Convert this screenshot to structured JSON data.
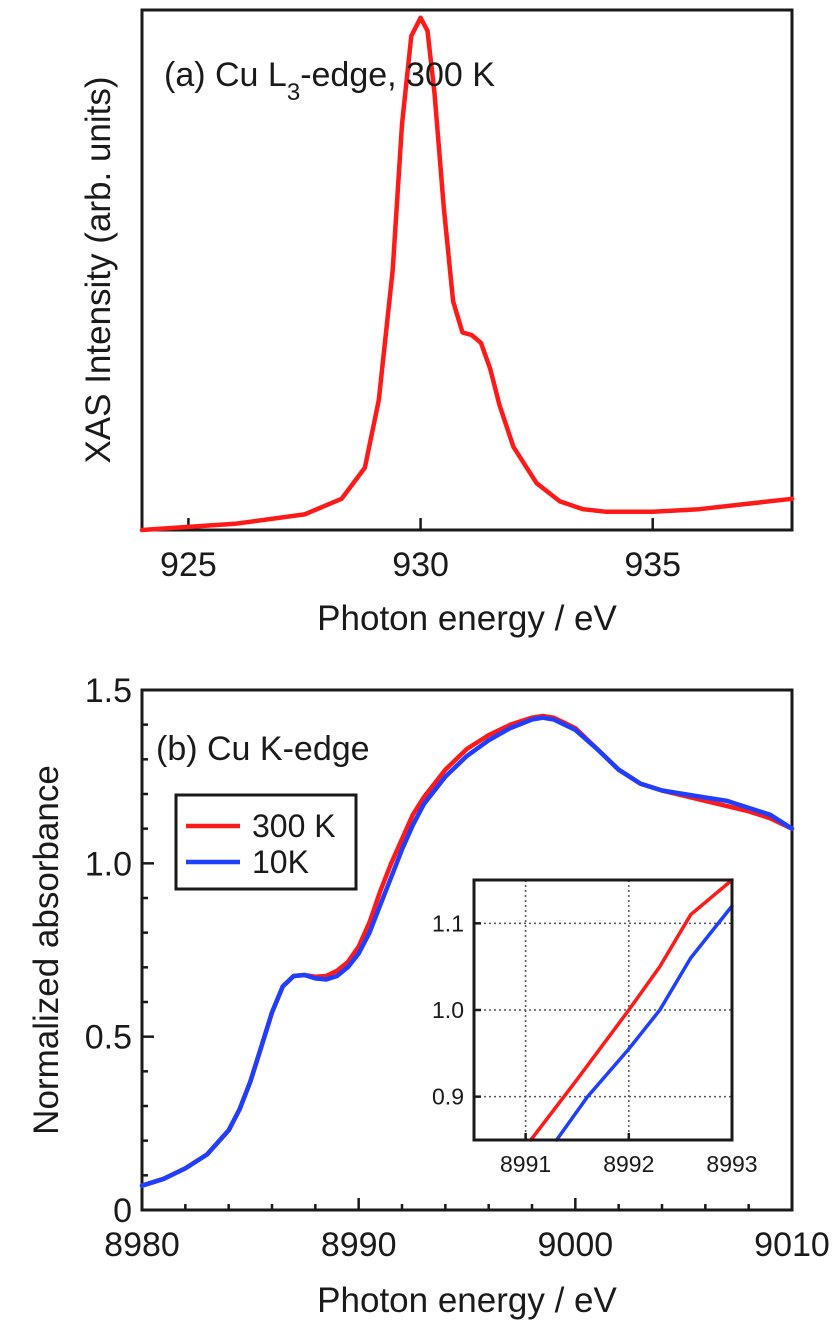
{
  "chart_data": [
    {
      "type": "line",
      "panel_label": "(a) Cu L",
      "panel_label_sub": "3",
      "panel_label_suffix": "-edge, 300 K",
      "xlabel": "Photon energy / eV",
      "ylabel": "XAS Intensity (arb. units)",
      "xlim": [
        924,
        938
      ],
      "ylim": [
        0,
        1
      ],
      "x_ticks": [
        925,
        930,
        935
      ],
      "y_ticks": [],
      "grid": false,
      "series": [
        {
          "color": "#ff1a1a",
          "x": [
            924,
            926,
            927.5,
            928.3,
            928.8,
            929.1,
            929.4,
            929.6,
            929.8,
            930.0,
            930.15,
            930.3,
            930.5,
            930.7,
            930.9,
            931.1,
            931.3,
            931.5,
            931.7,
            932.0,
            932.5,
            933.0,
            933.5,
            934.0,
            935.0,
            936.0,
            937.0,
            938.0
          ],
          "y": [
            0.0,
            0.012,
            0.03,
            0.06,
            0.12,
            0.25,
            0.5,
            0.78,
            0.95,
            0.985,
            0.96,
            0.84,
            0.62,
            0.44,
            0.38,
            0.375,
            0.36,
            0.31,
            0.24,
            0.16,
            0.09,
            0.055,
            0.04,
            0.035,
            0.035,
            0.04,
            0.05,
            0.06
          ]
        }
      ]
    },
    {
      "type": "line",
      "panel_label": "(b) Cu K-edge",
      "xlabel": "Photon energy / eV",
      "ylabel": "Normalized absorbance",
      "xlim": [
        8980,
        9010
      ],
      "ylim": [
        0,
        1.5
      ],
      "x_ticks": [
        8980,
        8990,
        9000,
        9010
      ],
      "y_ticks": [
        0,
        0.5,
        1.0,
        1.5
      ],
      "y_tick_labels": [
        "0",
        "0.5",
        "1.0",
        "1.5"
      ],
      "grid": false,
      "legend": {
        "position": "upper-left",
        "entries": [
          "300 K",
          "10K"
        ]
      },
      "series": [
        {
          "name": "300 K",
          "color": "#ff1a1a",
          "x": [
            8980,
            8981,
            8982,
            8983,
            8984,
            8984.5,
            8985,
            8985.5,
            8986,
            8986.5,
            8987,
            8987.5,
            8988,
            8988.5,
            8989,
            8989.5,
            8990,
            8990.5,
            8991,
            8991.5,
            8992,
            8992.5,
            8993,
            8994,
            8995,
            8996,
            8997,
            8998,
            8998.5,
            8999,
            9000,
            9001,
            9002,
            9003,
            9004,
            9005,
            9006,
            9007,
            9008,
            9009,
            9010
          ],
          "y": [
            0.07,
            0.09,
            0.12,
            0.16,
            0.23,
            0.29,
            0.37,
            0.47,
            0.57,
            0.645,
            0.675,
            0.678,
            0.673,
            0.675,
            0.69,
            0.715,
            0.76,
            0.83,
            0.92,
            1.0,
            1.07,
            1.14,
            1.19,
            1.27,
            1.33,
            1.37,
            1.4,
            1.42,
            1.425,
            1.42,
            1.39,
            1.33,
            1.27,
            1.23,
            1.21,
            1.195,
            1.18,
            1.165,
            1.15,
            1.13,
            1.1
          ]
        },
        {
          "name": "10K",
          "color": "#1f3fff",
          "x": [
            8980,
            8981,
            8982,
            8983,
            8984,
            8984.5,
            8985,
            8985.5,
            8986,
            8986.5,
            8987,
            8987.5,
            8988,
            8988.5,
            8989,
            8989.5,
            8990,
            8990.5,
            8991,
            8991.5,
            8992,
            8992.5,
            8993,
            8994,
            8995,
            8996,
            8997,
            8998,
            8998.5,
            8999,
            9000,
            9001,
            9002,
            9003,
            9004,
            9005,
            9006,
            9007,
            9008,
            9009,
            9010
          ],
          "y": [
            0.07,
            0.09,
            0.12,
            0.16,
            0.23,
            0.29,
            0.37,
            0.47,
            0.57,
            0.645,
            0.675,
            0.678,
            0.668,
            0.665,
            0.675,
            0.7,
            0.74,
            0.8,
            0.88,
            0.96,
            1.04,
            1.11,
            1.17,
            1.25,
            1.31,
            1.355,
            1.39,
            1.415,
            1.42,
            1.415,
            1.385,
            1.33,
            1.27,
            1.23,
            1.21,
            1.2,
            1.19,
            1.18,
            1.16,
            1.14,
            1.1
          ]
        }
      ],
      "inset": {
        "type": "line",
        "xlim": [
          8990.5,
          8993
        ],
        "ylim": [
          0.85,
          1.15
        ],
        "x_ticks": [
          8991,
          8992,
          8993
        ],
        "y_ticks": [
          0.9,
          1.0,
          1.1
        ],
        "y_tick_labels": [
          "0.9",
          "1.0",
          "1.1"
        ],
        "grid": true,
        "series": [
          {
            "name": "300 K",
            "color": "#ff1a1a",
            "x": [
              8991.05,
              8991.5,
              8992.0,
              8992.3,
              8992.6,
              8993.0
            ],
            "y": [
              0.85,
              0.92,
              1.0,
              1.05,
              1.11,
              1.15
            ]
          },
          {
            "name": "10K",
            "color": "#1f3fff",
            "x": [
              8991.3,
              8991.6,
              8992.0,
              8992.3,
              8992.6,
              8993.0
            ],
            "y": [
              0.85,
              0.9,
              0.955,
              1.0,
              1.06,
              1.12
            ]
          }
        ]
      }
    }
  ]
}
